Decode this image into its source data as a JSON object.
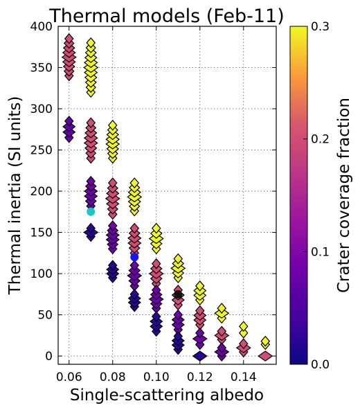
{
  "chart_data": {
    "type": "scatter",
    "title": "Thermal models (Feb-11)",
    "xlabel": "Single-scattering albedo",
    "ylabel": "Thermal inertia (SI units)",
    "xlim": [
      0.055,
      0.155
    ],
    "ylim": [
      -10,
      400
    ],
    "x_ticks": [
      "0.06",
      "0.08",
      "0.10",
      "0.12",
      "0.14"
    ],
    "y_ticks": [
      "0",
      "50",
      "100",
      "150",
      "200",
      "250",
      "300",
      "350",
      "400"
    ],
    "grid": true,
    "colorbar": {
      "label": "Crater coverage fraction",
      "range": [
        0.0,
        0.3
      ],
      "ticks": [
        "0.0",
        "0.1",
        "0.2",
        "0.3"
      ],
      "colormap": "plasma"
    },
    "marker_series": {
      "marker": "diamond",
      "groups": [
        {
          "x": 0.06,
          "y_min": 340,
          "y_max": 385,
          "c": 0.2
        },
        {
          "x": 0.06,
          "y_min": 265,
          "y_max": 285,
          "c": 0.07
        },
        {
          "x": 0.07,
          "y_min": 320,
          "y_max": 380,
          "c": 0.3
        },
        {
          "x": 0.07,
          "y_min": 240,
          "y_max": 283,
          "c": 0.2
        },
        {
          "x": 0.07,
          "y_min": 182,
          "y_max": 212,
          "c": 0.08
        },
        {
          "x": 0.07,
          "y_min": 145,
          "y_max": 155,
          "c": 0.02
        },
        {
          "x": 0.08,
          "y_min": 240,
          "y_max": 280,
          "c": 0.3
        },
        {
          "x": 0.08,
          "y_min": 172,
          "y_max": 210,
          "c": 0.2
        },
        {
          "x": 0.08,
          "y_min": 130,
          "y_max": 158,
          "c": 0.08
        },
        {
          "x": 0.08,
          "y_min": 95,
          "y_max": 110,
          "c": 0.02
        },
        {
          "x": 0.09,
          "y_min": 176,
          "y_max": 210,
          "c": 0.3
        },
        {
          "x": 0.09,
          "y_min": 125,
          "y_max": 155,
          "c": 0.2
        },
        {
          "x": 0.09,
          "y_min": 85,
          "y_max": 110,
          "c": 0.08
        },
        {
          "x": 0.09,
          "y_min": 60,
          "y_max": 75,
          "c": 0.02
        },
        {
          "x": 0.1,
          "y_min": 130,
          "y_max": 155,
          "c": 0.3
        },
        {
          "x": 0.1,
          "y_min": 88,
          "y_max": 112,
          "c": 0.2
        },
        {
          "x": 0.1,
          "y_min": 58,
          "y_max": 80,
          "c": 0.08
        },
        {
          "x": 0.1,
          "y_min": 30,
          "y_max": 48,
          "c": 0.02
        },
        {
          "x": 0.11,
          "y_min": 95,
          "y_max": 118,
          "c": 0.3
        },
        {
          "x": 0.11,
          "y_min": 62,
          "y_max": 80,
          "c": 0.2
        },
        {
          "x": 0.11,
          "y_min": 32,
          "y_max": 50,
          "c": 0.08
        },
        {
          "x": 0.11,
          "y_min": 8,
          "y_max": 24,
          "c": 0.02
        },
        {
          "x": 0.12,
          "y_min": 68,
          "y_max": 85,
          "c": 0.3
        },
        {
          "x": 0.12,
          "y_min": 38,
          "y_max": 55,
          "c": 0.2
        },
        {
          "x": 0.12,
          "y_min": 14,
          "y_max": 28,
          "c": 0.08
        },
        {
          "x": 0.12,
          "y_min": 0,
          "y_max": 0,
          "c": 0.02
        },
        {
          "x": 0.13,
          "y_min": 46,
          "y_max": 58,
          "c": 0.3
        },
        {
          "x": 0.13,
          "y_min": 20,
          "y_max": 30,
          "c": 0.2
        },
        {
          "x": 0.13,
          "y_min": 0,
          "y_max": 10,
          "c": 0.08
        },
        {
          "x": 0.14,
          "y_min": 28,
          "y_max": 36,
          "c": 0.3
        },
        {
          "x": 0.14,
          "y_min": 5,
          "y_max": 15,
          "c": 0.2
        },
        {
          "x": 0.15,
          "y_min": 14,
          "y_max": 18,
          "c": 0.3
        },
        {
          "x": 0.15,
          "y_min": 0,
          "y_max": 0,
          "c": 0.2
        }
      ]
    },
    "highlight_points": [
      {
        "x": 0.07,
        "y": 175,
        "color": "#1fc4c4"
      },
      {
        "x": 0.09,
        "y": 120,
        "color": "#1515ff"
      },
      {
        "x": 0.11,
        "y": 75,
        "color": "#111111"
      }
    ]
  }
}
